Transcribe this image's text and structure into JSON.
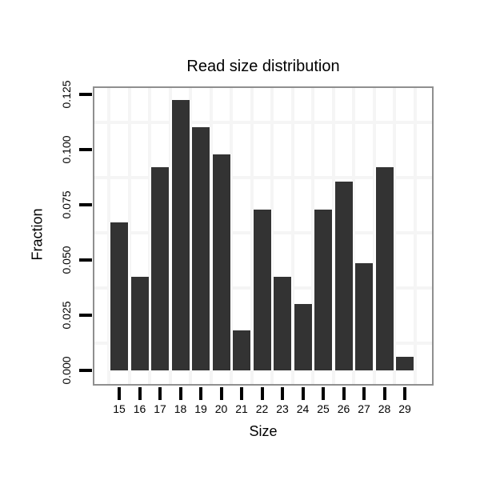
{
  "chart_data": {
    "type": "bar",
    "title": "Read size distribution",
    "xlabel": "Size",
    "ylabel": "Fraction",
    "categories": [
      "15",
      "16",
      "17",
      "18",
      "19",
      "20",
      "21",
      "22",
      "23",
      "24",
      "25",
      "26",
      "27",
      "28",
      "29"
    ],
    "values": [
      0.067,
      0.0425,
      0.092,
      0.1225,
      0.11,
      0.098,
      0.018,
      0.073,
      0.0425,
      0.03,
      0.073,
      0.0855,
      0.0485,
      0.092,
      0.006
    ],
    "y_tick_labels": [
      "0.000",
      "0.025",
      "0.050",
      "0.075",
      "0.100",
      "0.125"
    ],
    "y_tick_values": [
      0.0,
      0.025,
      0.05,
      0.075,
      0.1,
      0.125
    ],
    "ylim": [
      0,
      0.128
    ],
    "grid": "minor-only",
    "legend": "none",
    "bar_color": "#333333",
    "bar_separator_color": "#ffffff",
    "panel_border_color": "#8f8f8f",
    "gridline_color": "#f5f5f5",
    "tick_color": "#000000",
    "text_color": "#000000",
    "background": "#ffffff"
  }
}
